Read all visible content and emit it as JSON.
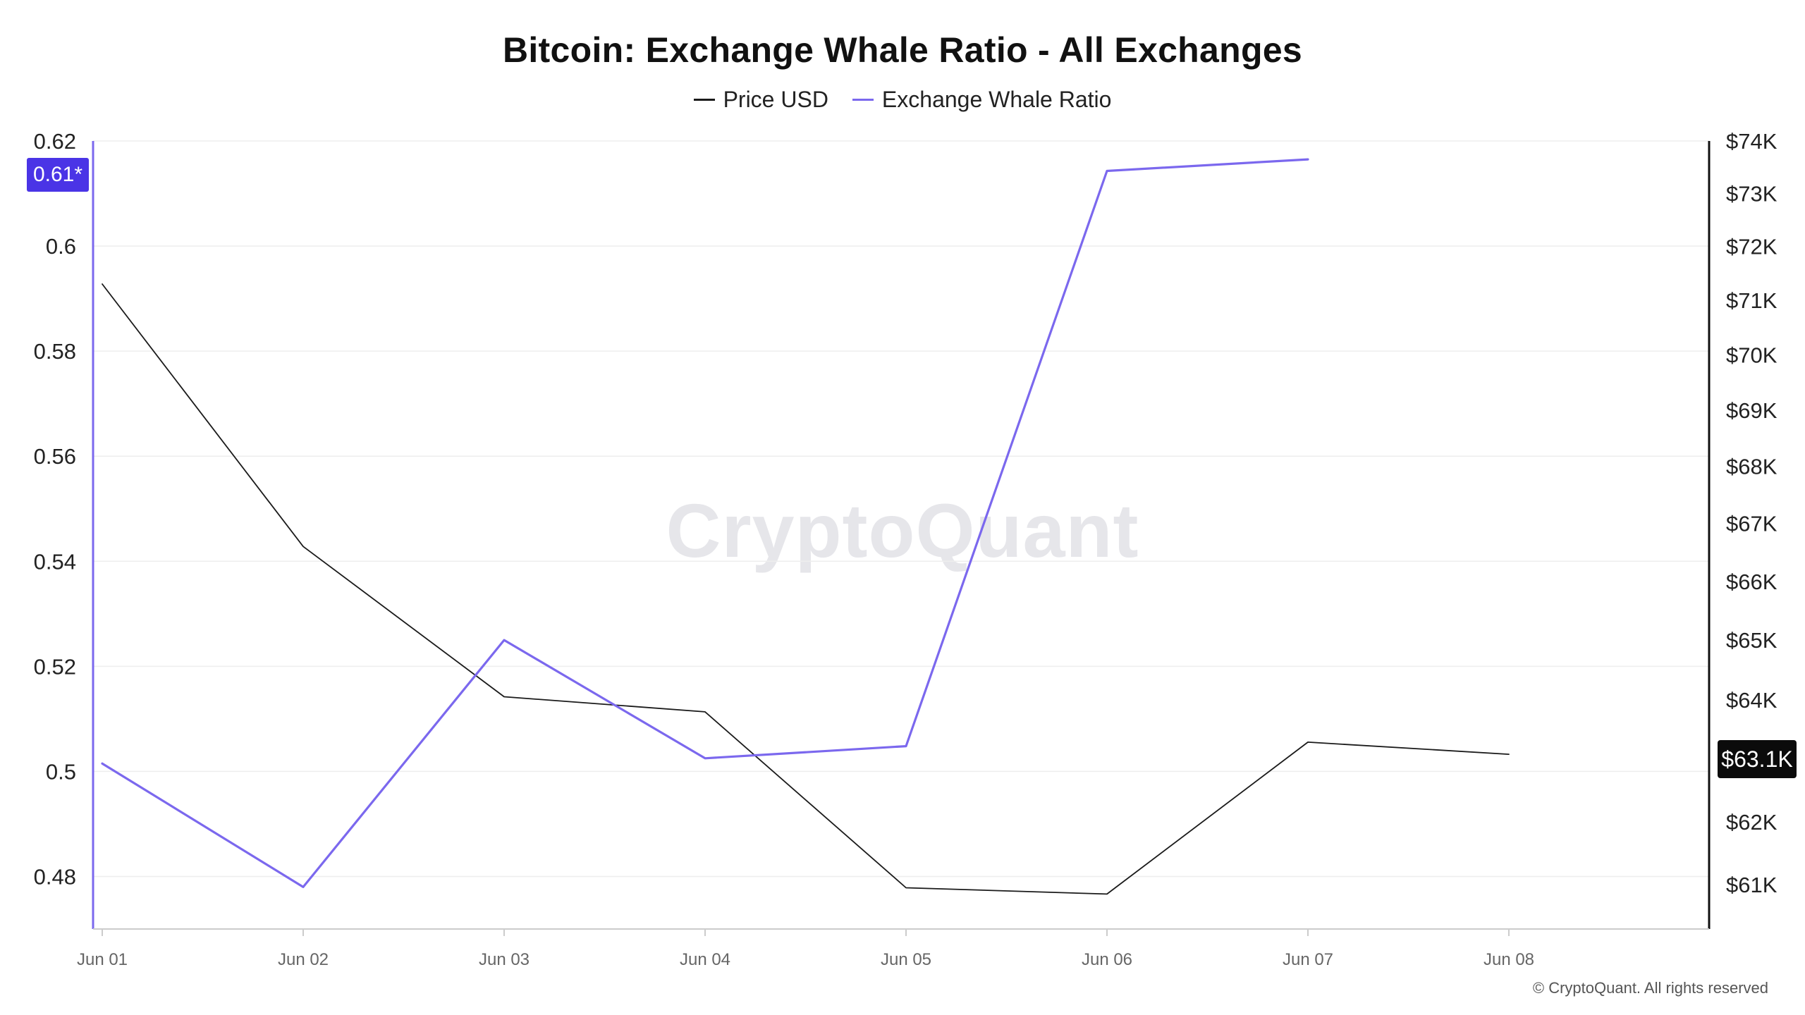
{
  "title": "Bitcoin: Exchange Whale Ratio - All Exchanges",
  "legend": [
    {
      "label": "Price USD",
      "color": "#1a1a1a"
    },
    {
      "label": "Exchange Whale Ratio",
      "color": "#7b68ee"
    }
  ],
  "watermark": "CryptoQuant",
  "copyright": "© CryptoQuant. All rights reserved",
  "badges": {
    "left_value": "0.61*",
    "right_value": "$63.1K",
    "left_color": "#4a34e6",
    "right_color": "#0b0b0b"
  },
  "chart_data": {
    "type": "line",
    "title": "Bitcoin: Exchange Whale Ratio - All Exchanges",
    "categories": [
      "Jun 01",
      "Jun 02",
      "Jun 03",
      "Jun 04",
      "Jun 05",
      "Jun 06",
      "Jun 07",
      "Jun 08"
    ],
    "series": [
      {
        "name": "Price USD",
        "axis": "right",
        "color": "#1a1a1a",
        "values": [
          71300,
          66600,
          64050,
          63800,
          60950,
          60850,
          63300,
          63100
        ]
      },
      {
        "name": "Exchange Whale Ratio",
        "axis": "left",
        "color": "#7b68ee",
        "values": [
          0.5015,
          0.478,
          0.525,
          0.5025,
          0.5048,
          0.6143,
          0.6165,
          null
        ]
      }
    ],
    "left_axis": {
      "ticks": [
        0.48,
        0.5,
        0.52,
        0.54,
        0.56,
        0.58,
        0.6,
        0.62
      ],
      "tick_labels": [
        "0.48",
        "0.5",
        "0.52",
        "0.54",
        "0.56",
        "0.58",
        "0.6",
        "0.62"
      ],
      "range": [
        0.47,
        0.62
      ]
    },
    "right_axis": {
      "ticks": [
        61000,
        62000,
        63000,
        64000,
        65000,
        66000,
        67000,
        68000,
        69000,
        70000,
        71000,
        72000,
        73000,
        74000
      ],
      "tick_labels": [
        "$61K",
        "$62K",
        "$63K",
        "$64K",
        "$65K",
        "$66K",
        "$67K",
        "$68K",
        "$69K",
        "$70K",
        "$71K",
        "$72K",
        "$73K",
        "$74K"
      ],
      "display_ticks": [
        "$61K",
        "$62K",
        "$64K",
        "$65K",
        "$66K",
        "$67K",
        "$68K",
        "$69K",
        "$70K",
        "$71K",
        "$72K",
        "$73K",
        "$74K"
      ],
      "range": [
        60300,
        74000
      ],
      "scale": "log"
    },
    "grid": true,
    "legend_position": "top-center"
  }
}
